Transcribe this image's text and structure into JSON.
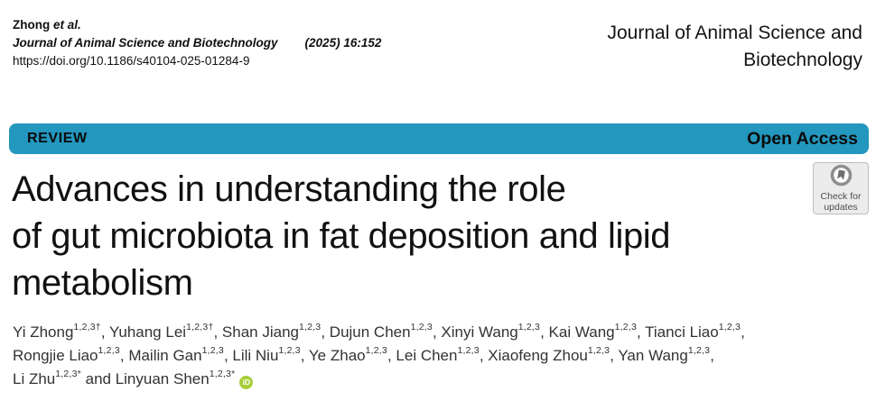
{
  "colors": {
    "banner": "#2397BE",
    "orcid_green": "#A6CE39",
    "badge_bg": "#ececec"
  },
  "citation": {
    "author_short": "Zhong",
    "et_al": "et al.",
    "journal": "Journal of Animal Science and Biotechnology",
    "issue": "(2025) 16:152",
    "doi": "https://doi.org/10.1186/s40104-025-01284-9"
  },
  "masthead": {
    "line1": "Journal of Animal Science and",
    "line2": "Biotechnology"
  },
  "banner": {
    "type_label": "REVIEW",
    "access_label": "Open Access"
  },
  "check_badge": {
    "line1": "Check for",
    "line2": "updates",
    "icon": "crossmark-icon"
  },
  "title": {
    "line1": "Advances in understanding the role",
    "line2": "of gut microbiota in fat deposition and lipid",
    "line3": "metabolism"
  },
  "authors": {
    "lines": [
      [
        {
          "text": "Yi Zhong",
          "sup": "1,2,3†"
        },
        {
          "text": ", Yuhang Lei",
          "sup": "1,2,3†"
        },
        {
          "text": ", Shan Jiang",
          "sup": "1,2,3"
        },
        {
          "text": ", Dujun Chen",
          "sup": "1,2,3"
        },
        {
          "text": ", Xinyi Wang",
          "sup": "1,2,3"
        },
        {
          "text": ", Kai Wang",
          "sup": "1,2,3"
        },
        {
          "text": ", Tianci Liao",
          "sup": "1,2,3"
        },
        {
          "text": ","
        }
      ],
      [
        {
          "text": "Rongjie Liao",
          "sup": "1,2,3"
        },
        {
          "text": ", Mailin Gan",
          "sup": "1,2,3"
        },
        {
          "text": ", Lili Niu",
          "sup": "1,2,3"
        },
        {
          "text": ", Ye Zhao",
          "sup": "1,2,3"
        },
        {
          "text": ", Lei Chen",
          "sup": "1,2,3"
        },
        {
          "text": ", Xiaofeng Zhou",
          "sup": "1,2,3"
        },
        {
          "text": ", Yan Wang",
          "sup": "1,2,3"
        },
        {
          "text": ","
        }
      ],
      [
        {
          "text": "Li Zhu",
          "sup": "1,2,3*"
        },
        {
          "text": " and Linyuan Shen",
          "sup": "1,2,3*"
        },
        {
          "icon": "orcid-icon",
          "label": "iD"
        }
      ]
    ]
  }
}
